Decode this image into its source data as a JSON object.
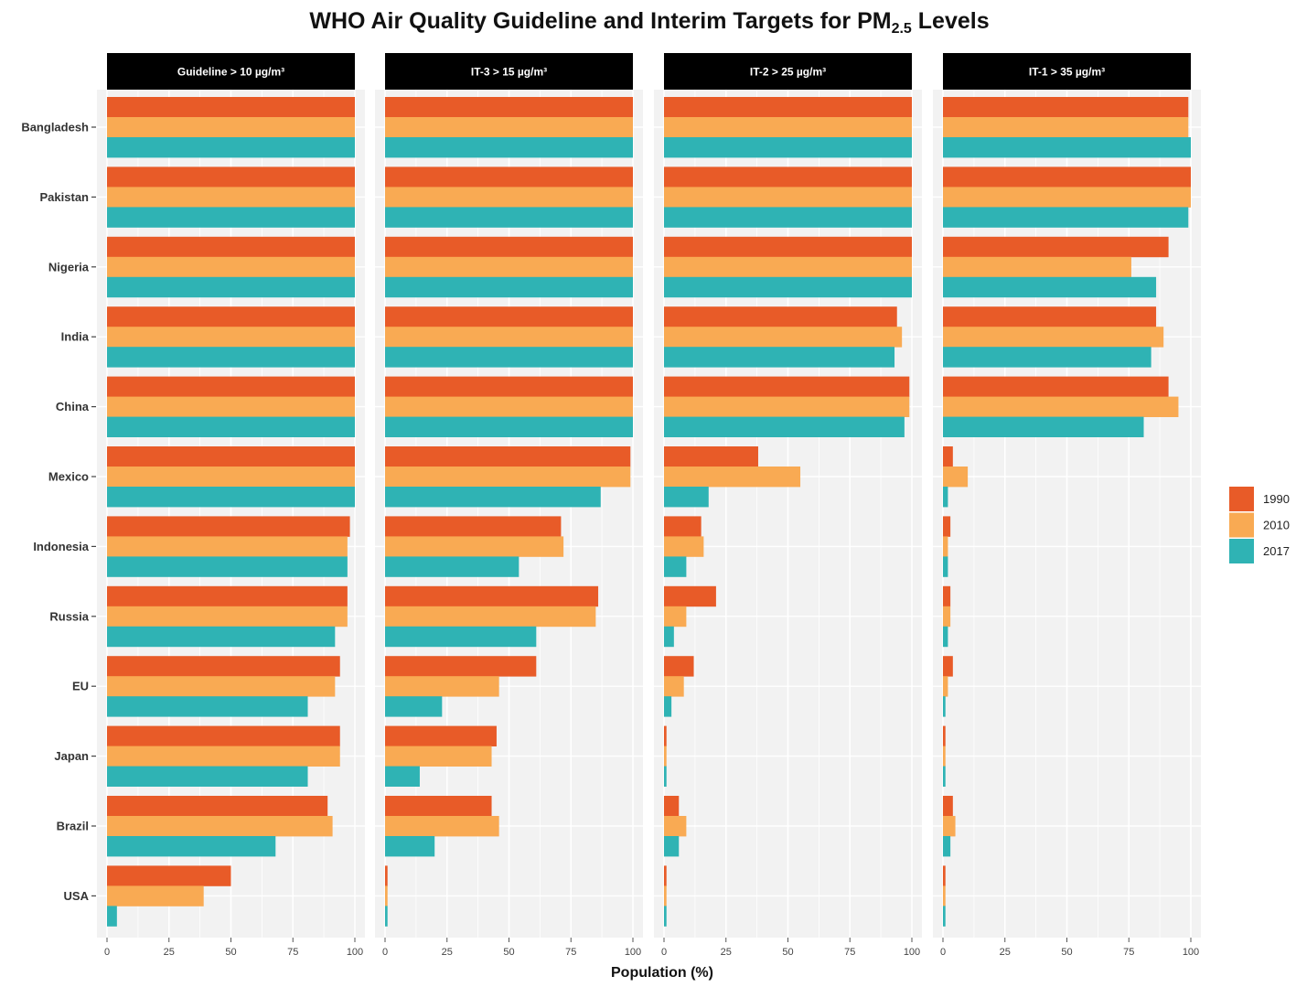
{
  "chart_data": {
    "type": "bar",
    "orientation": "horizontal",
    "title": "WHO Air Quality Guideline and Interim Targets for PM",
    "title_subscript": "2.5",
    "title_suffix": " Levels",
    "xlabel": "Population (%)",
    "ylabel": "",
    "xlim": [
      0,
      100
    ],
    "x_ticks": [
      "0",
      "25",
      "50",
      "75",
      "100"
    ],
    "grid": true,
    "legend_position": "right",
    "categories": [
      "Bangladesh",
      "Pakistan",
      "Nigeria",
      "India",
      "China",
      "Mexico",
      "Indonesia",
      "Russia",
      "EU",
      "Japan",
      "Brazil",
      "USA"
    ],
    "series_order": [
      "1990",
      "2010",
      "2017"
    ],
    "colors": {
      "1990": "#E85B28",
      "2010": "#F9AA53",
      "2017": "#2FB3B4"
    },
    "panels": [
      {
        "label": "Guideline > 10 µg/m³",
        "series": [
          {
            "name": "1990",
            "values": [
              100,
              100,
              100,
              100,
              100,
              100,
              98,
              97,
              94,
              94,
              89,
              50
            ]
          },
          {
            "name": "2010",
            "values": [
              100,
              100,
              100,
              100,
              100,
              100,
              97,
              97,
              92,
              94,
              91,
              39
            ]
          },
          {
            "name": "2017",
            "values": [
              100,
              100,
              100,
              100,
              100,
              100,
              97,
              92,
              81,
              81,
              68,
              4
            ]
          }
        ]
      },
      {
        "label": "IT-3 > 15 µg/m³",
        "series": [
          {
            "name": "1990",
            "values": [
              100,
              100,
              100,
              100,
              100,
              99,
              71,
              86,
              61,
              45,
              43,
              1
            ]
          },
          {
            "name": "2010",
            "values": [
              100,
              100,
              100,
              100,
              100,
              99,
              72,
              85,
              46,
              43,
              46,
              1
            ]
          },
          {
            "name": "2017",
            "values": [
              100,
              100,
              100,
              100,
              100,
              87,
              54,
              61,
              23,
              14,
              20,
              1
            ]
          }
        ]
      },
      {
        "label": "IT-2 > 25 µg/m³",
        "series": [
          {
            "name": "1990",
            "values": [
              100,
              100,
              100,
              94,
              99,
              38,
              15,
              21,
              12,
              1,
              6,
              1
            ]
          },
          {
            "name": "2010",
            "values": [
              100,
              100,
              100,
              96,
              99,
              55,
              16,
              9,
              8,
              1,
              9,
              1
            ]
          },
          {
            "name": "2017",
            "values": [
              100,
              100,
              100,
              93,
              97,
              18,
              9,
              4,
              3,
              1,
              6,
              1
            ]
          }
        ]
      },
      {
        "label": "IT-1 > 35 µg/m³",
        "series": [
          {
            "name": "1990",
            "values": [
              99,
              100,
              91,
              86,
              91,
              4,
              3,
              3,
              4,
              1,
              4,
              1
            ]
          },
          {
            "name": "2010",
            "values": [
              99,
              100,
              76,
              89,
              95,
              10,
              2,
              3,
              2,
              1,
              5,
              1
            ]
          },
          {
            "name": "2017",
            "values": [
              100,
              99,
              86,
              84,
              81,
              2,
              2,
              2,
              1,
              1,
              3,
              1
            ]
          }
        ]
      }
    ]
  }
}
